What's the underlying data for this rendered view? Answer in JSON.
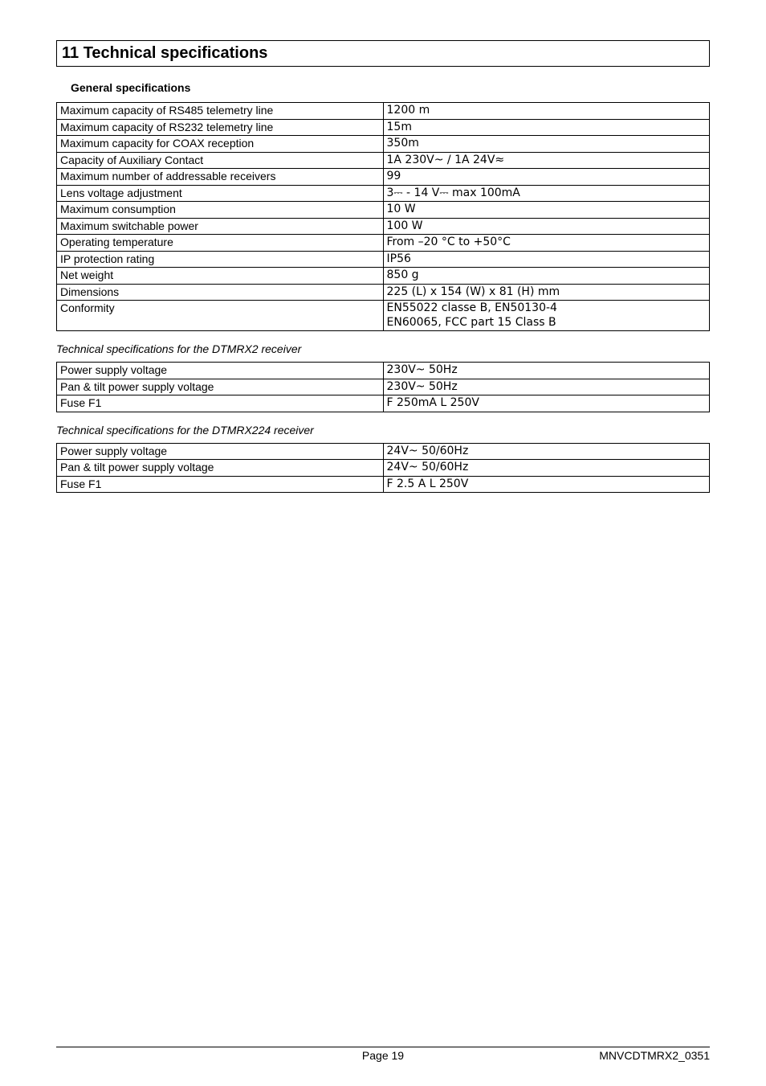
{
  "section": {
    "title": "11 Technical specifications"
  },
  "general": {
    "heading": "General specifications",
    "rows": [
      {
        "label": "Maximum capacity of RS485 telemetry line",
        "value": "1200 m"
      },
      {
        "label": "Maximum capacity of RS232 telemetry line",
        "value": "15m"
      },
      {
        "label": "Maximum capacity for COAX reception",
        "value": "350m"
      },
      {
        "label": "Capacity of Auxiliary Contact",
        "value": "1A 230V~  / 1A 24V≈"
      },
      {
        "label": "Maximum number of addressable receivers",
        "value": "99"
      },
      {
        "label": "Lens voltage adjustment",
        "value": "3⎓ - 14 V⎓ max 100mA"
      },
      {
        "label": "Maximum consumption",
        "value": "10 W"
      },
      {
        "label": "Maximum switchable power",
        "value": "100 W"
      },
      {
        "label": "Operating temperature",
        "value": "From –20 °C to +50°C"
      },
      {
        "label": "IP protection rating",
        "value": "IP56"
      },
      {
        "label": "Net weight",
        "value": "850 g"
      },
      {
        "label": "Dimensions",
        "value": "225 (L) x 154 (W)  x 81 (H) mm"
      },
      {
        "label": "Conformity",
        "value": "EN55022 classe B, EN50130-4\nEN60065, FCC part 15 Class B"
      }
    ]
  },
  "dtmrx2": {
    "heading": "Technical specifications for the DTMRX2 receiver",
    "rows": [
      {
        "label": "Power supply voltage",
        "value": "230V~ 50Hz"
      },
      {
        "label": "Pan & tilt power supply voltage",
        "value": "230V~ 50Hz"
      },
      {
        "label": "Fuse F1",
        "value": "F 250mA L 250V"
      }
    ]
  },
  "dtmrx224": {
    "heading": "Technical specifications for the DTMRX224 receiver",
    "rows": [
      {
        "label": "Power supply voltage",
        "value": "24V~ 50/60Hz"
      },
      {
        "label": "Pan & tilt power supply voltage",
        "value": "24V~ 50/60Hz"
      },
      {
        "label": "Fuse F1",
        "value": "F 2.5 A L 250V"
      }
    ]
  },
  "footer": {
    "left": "",
    "center": "Page 19",
    "right": "MNVCDTMRX2_0351"
  }
}
